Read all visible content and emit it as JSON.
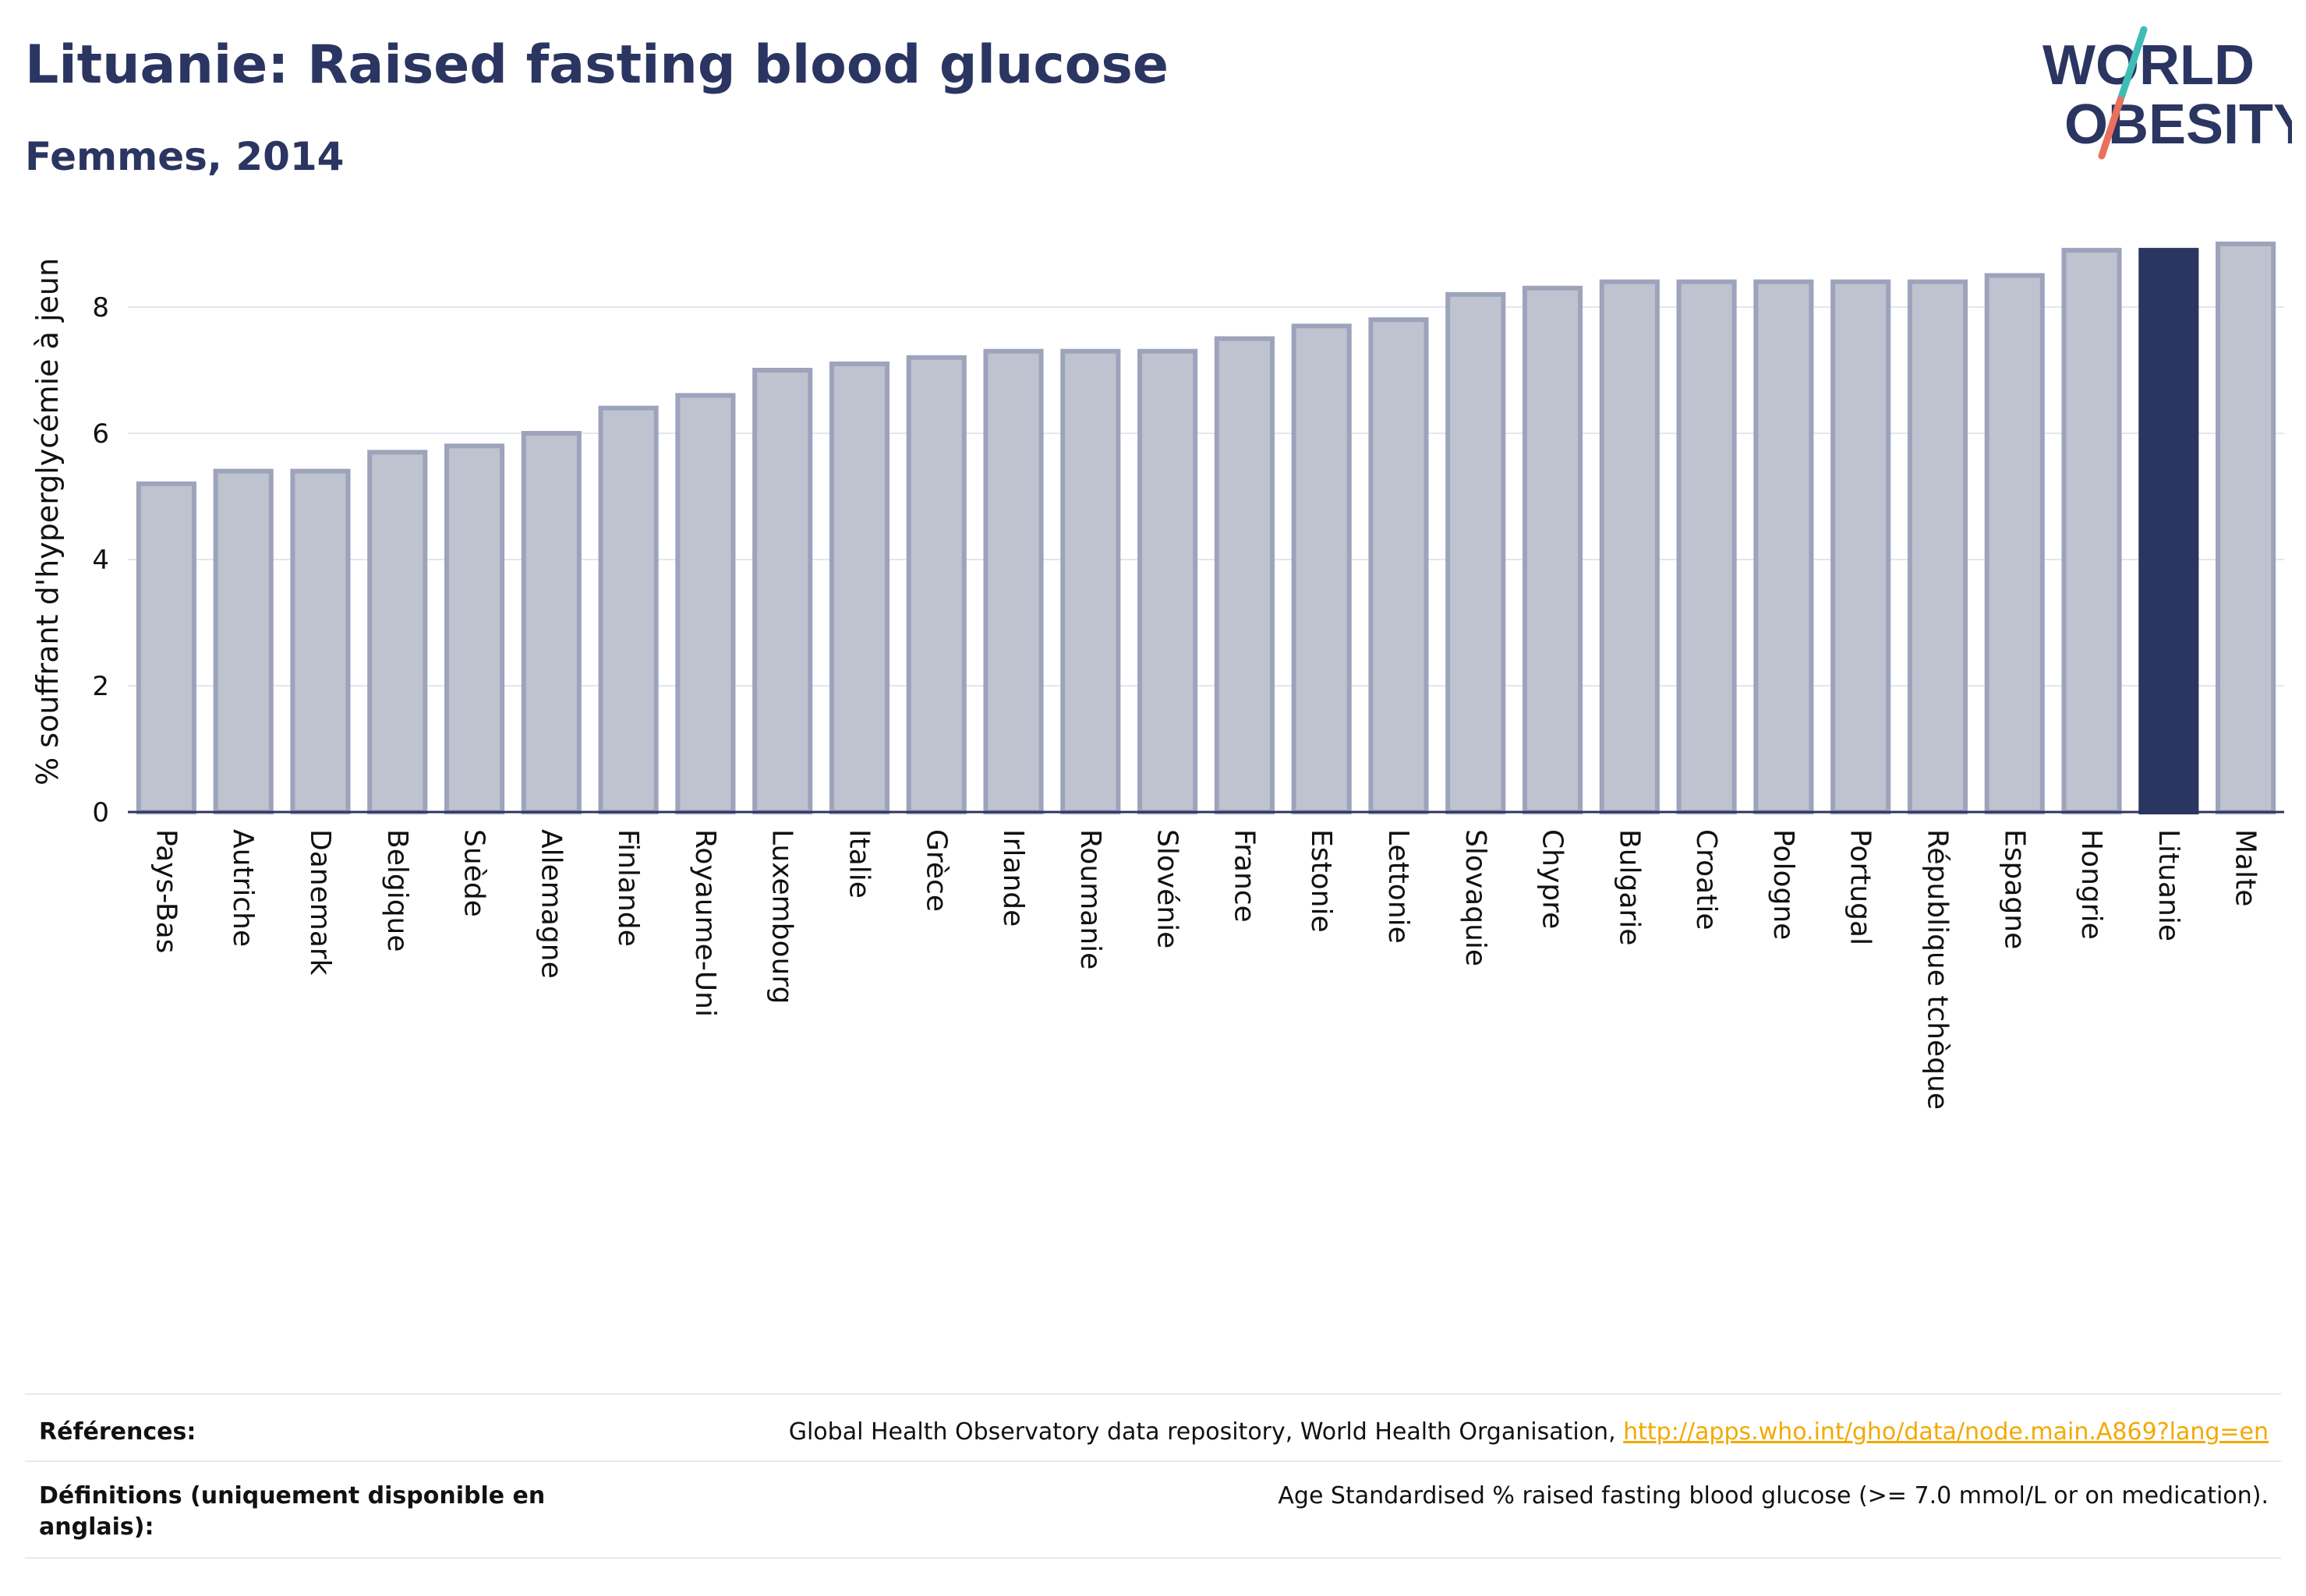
{
  "title": "Lituanie: Raised fasting blood glucose",
  "subtitle": "Femmes, 2014",
  "logo": {
    "line1": "WORLD",
    "line2": "OBESITY"
  },
  "colors": {
    "primary": "#2b3561",
    "bar_fill": "#bfc2cf",
    "bar_stroke": "#9ea3bc",
    "accent": "#f2a900",
    "logo_slash_top": "#3ebdb6",
    "logo_slash_bottom": "#e8705d"
  },
  "chart_data": {
    "type": "bar",
    "categories": [
      "Pays-Bas",
      "Autriche",
      "Danemark",
      "Belgique",
      "Suède",
      "Allemagne",
      "Finlande",
      "Royaume-Uni",
      "Luxembourg",
      "Italie",
      "Grèce",
      "Irlande",
      "Roumanie",
      "Slovénie",
      "France",
      "Estonie",
      "Lettonie",
      "Slovaquie",
      "Chypre",
      "Bulgarie",
      "Croatie",
      "Pologne",
      "Portugal",
      "République tchèque",
      "Espagne",
      "Hongrie",
      "Lituanie",
      "Malte"
    ],
    "values": [
      5.2,
      5.4,
      5.4,
      5.7,
      5.8,
      6.0,
      6.4,
      6.6,
      7.0,
      7.1,
      7.2,
      7.3,
      7.3,
      7.3,
      7.5,
      7.7,
      7.8,
      8.2,
      8.3,
      8.4,
      8.4,
      8.4,
      8.4,
      8.4,
      8.5,
      8.9,
      8.9,
      9.0
    ],
    "highlight": "Lituanie",
    "ylabel": "% souffrant d'hyperglycémie à jeun",
    "xlabel": "",
    "ylim": [
      0,
      9.4
    ],
    "yticks": [
      0,
      2,
      4,
      6,
      8
    ],
    "grid": true
  },
  "footer": {
    "references_label": "Références:",
    "references_text": "Global Health Observatory data repository, World Health Organisation, ",
    "references_link": "http://apps.who.int/gho/data/node.main.A869?lang=en",
    "definitions_label": "Définitions (uniquement disponible en anglais):",
    "definitions_text": "Age Standardised % raised fasting blood glucose (>= 7.0 mmol/L or on medication)."
  }
}
